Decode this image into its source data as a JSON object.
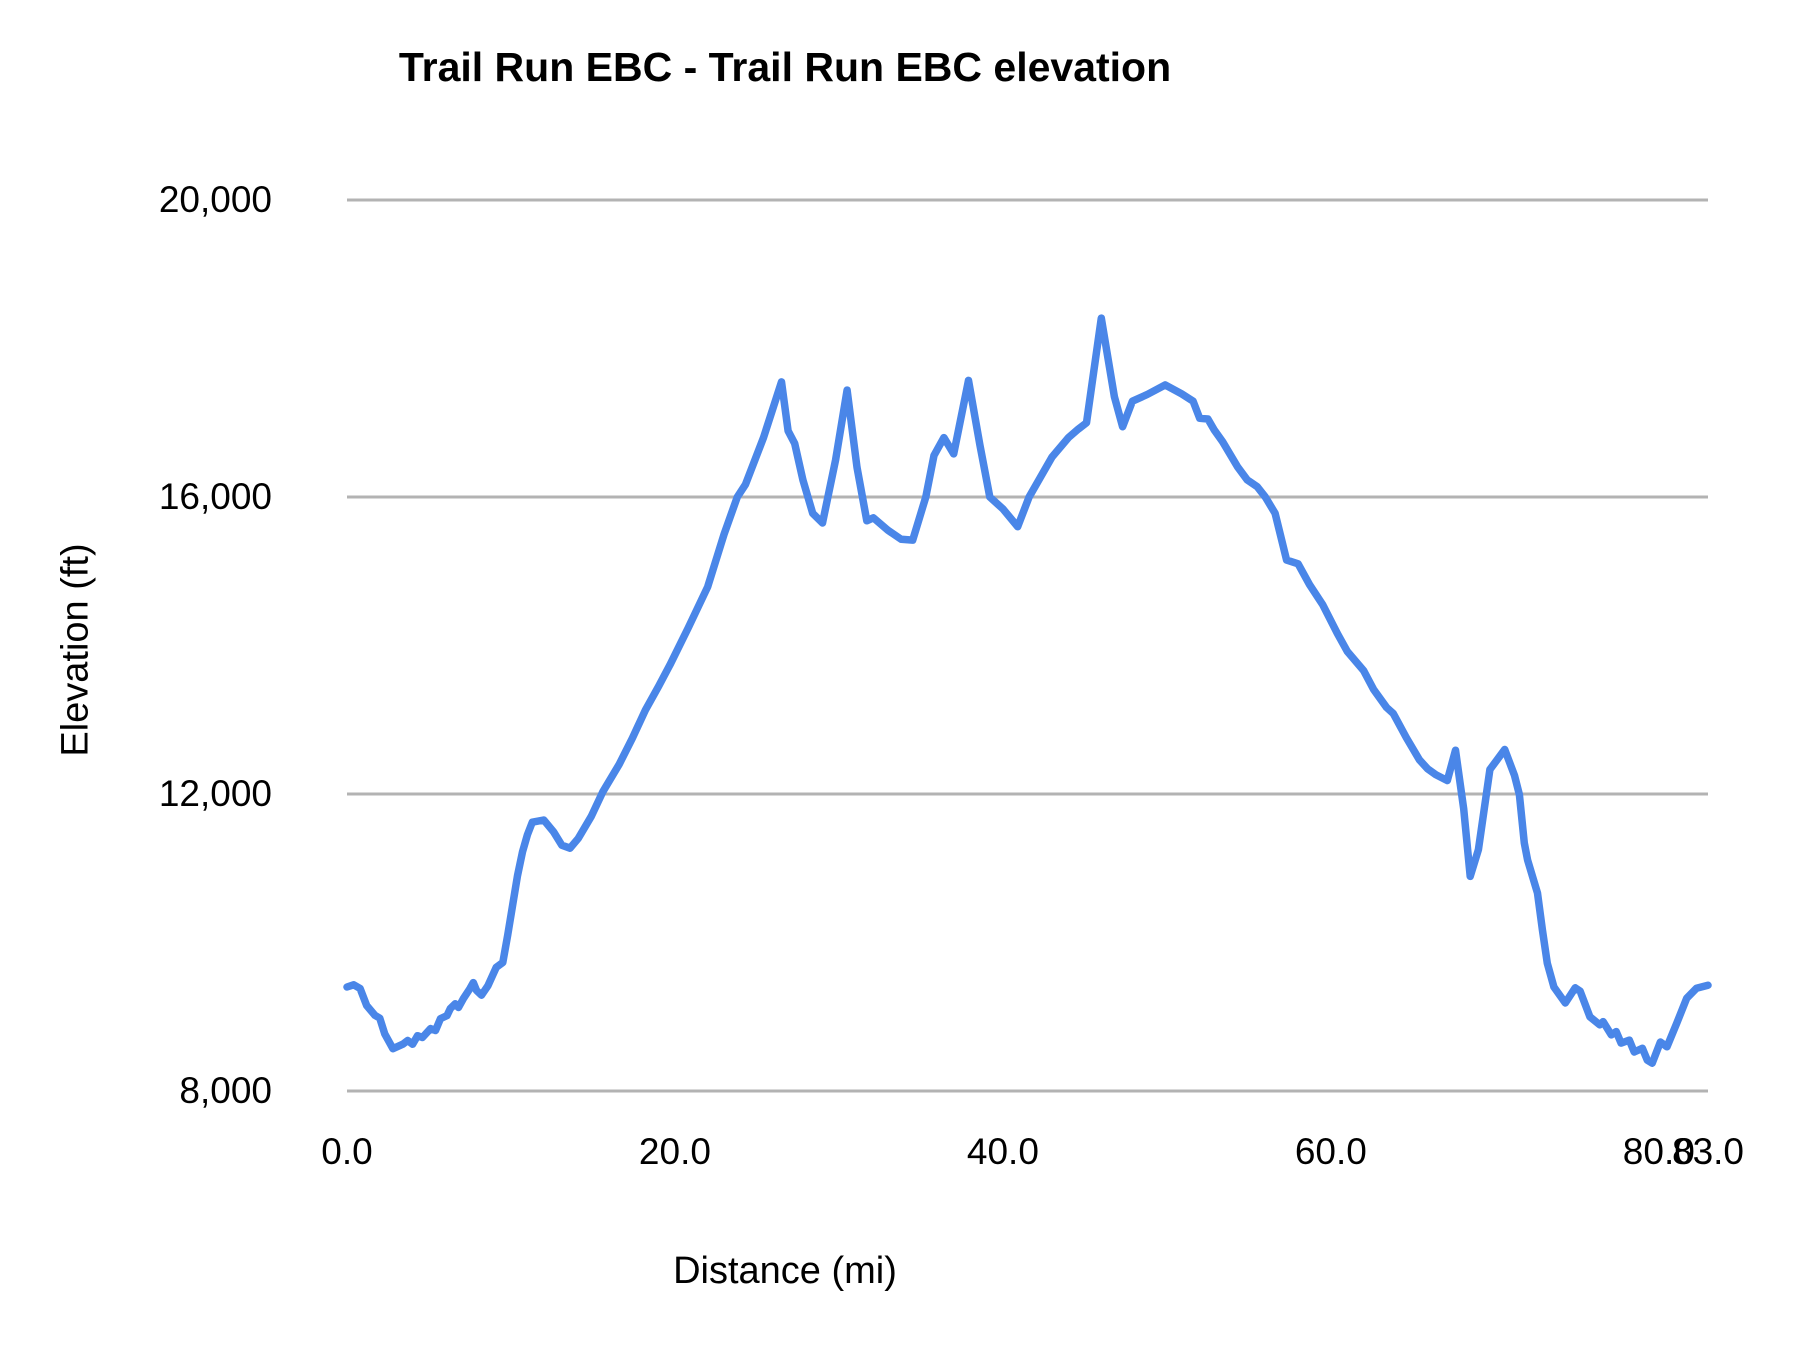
{
  "chart_data": {
    "type": "line",
    "title": "Trail Run EBC - Trail Run EBC elevation",
    "xlabel": "Distance (mi)",
    "ylabel": "Elevation (ft)",
    "xlim": [
      0,
      83
    ],
    "ylim": [
      8000,
      20000
    ],
    "grid": "horizontal-only",
    "legend": "none",
    "background_color": "#ffffff",
    "text_color": "#000000",
    "gridline_color": "#b3b3b3",
    "line_color": "#4a86e8",
    "yticks": [
      {
        "value": 20000,
        "label": "20,000"
      },
      {
        "value": 16000,
        "label": "16,000"
      },
      {
        "value": 12000,
        "label": "12,000"
      },
      {
        "value": 8000,
        "label": "8,000"
      }
    ],
    "xticks": [
      {
        "value": 0,
        "label": "0.0"
      },
      {
        "value": 20,
        "label": "20.0"
      },
      {
        "value": 40,
        "label": "40.0"
      },
      {
        "value": 60,
        "label": "60.0"
      },
      {
        "value": 80,
        "label": "80.0"
      },
      {
        "value": 83,
        "label": "83.0"
      }
    ],
    "series": [
      {
        "name": "Trail Run EBC elevation",
        "distance_mi": [
          0.0,
          0.4,
          0.8,
          1.2,
          1.7,
          2.0,
          2.3,
          2.8,
          3.4,
          3.7,
          4.0,
          4.3,
          4.6,
          5.1,
          5.4,
          5.7,
          6.1,
          6.3,
          6.6,
          6.8,
          7.1,
          7.5,
          7.7,
          7.9,
          8.2,
          8.6,
          9.1,
          9.5,
          9.8,
          10.1,
          10.4,
          10.7,
          11.0,
          11.3,
          12.0,
          12.6,
          13.1,
          13.6,
          14.1,
          14.9,
          15.6,
          16.6,
          17.4,
          18.2,
          19.0,
          19.7,
          20.8,
          22.0,
          23.0,
          23.8,
          24.3,
          25.4,
          26.5,
          26.9,
          27.3,
          27.8,
          28.4,
          29.0,
          29.8,
          30.5,
          31.1,
          31.7,
          32.1,
          33.0,
          33.8,
          34.5,
          35.3,
          35.8,
          36.4,
          37.0,
          37.9,
          38.6,
          39.2,
          40.0,
          40.9,
          41.6,
          43.0,
          44.0,
          44.6,
          45.1,
          46.0,
          46.8,
          47.3,
          47.9,
          48.8,
          49.9,
          50.9,
          51.6,
          52.0,
          52.5,
          52.9,
          53.4,
          54.3,
          54.9,
          55.5,
          56.0,
          56.6,
          57.3,
          58.0,
          58.7,
          59.5,
          60.4,
          61.0,
          62.0,
          62.6,
          63.4,
          63.8,
          64.6,
          65.4,
          65.9,
          66.4,
          67.1,
          67.6,
          68.1,
          68.5,
          69.0,
          69.7,
          70.1,
          70.6,
          71.2,
          71.5,
          71.8,
          72.0,
          72.6,
          72.9,
          73.2,
          73.6,
          74.3,
          74.9,
          75.2,
          75.8,
          76.4,
          76.6,
          77.1,
          77.4,
          77.7,
          78.2,
          78.5,
          79.0,
          79.3,
          79.6,
          80.1,
          80.5,
          81.1,
          81.7,
          82.3,
          83.0
        ],
        "elevation_ft": [
          9400,
          9430,
          9380,
          9150,
          9020,
          8980,
          8770,
          8570,
          8630,
          8680,
          8630,
          8745,
          8720,
          8840,
          8815,
          8975,
          9015,
          9110,
          9175,
          9125,
          9245,
          9380,
          9460,
          9355,
          9290,
          9420,
          9665,
          9730,
          10100,
          10500,
          10900,
          11220,
          11450,
          11620,
          11650,
          11490,
          11310,
          11270,
          11400,
          11700,
          12030,
          12400,
          12750,
          13130,
          13450,
          13740,
          14235,
          14790,
          15500,
          16000,
          16170,
          16800,
          17550,
          16890,
          16720,
          16230,
          15780,
          15650,
          16500,
          17440,
          16400,
          15680,
          15720,
          15550,
          15430,
          15420,
          16000,
          16560,
          16800,
          16580,
          17570,
          16700,
          16000,
          15840,
          15600,
          16000,
          16540,
          16800,
          16915,
          17000,
          18410,
          17350,
          16945,
          17290,
          17380,
          17510,
          17390,
          17290,
          17060,
          17050,
          16900,
          16745,
          16410,
          16230,
          16140,
          16000,
          15780,
          15150,
          15100,
          14820,
          14550,
          14160,
          13920,
          13660,
          13410,
          13165,
          13085,
          12760,
          12460,
          12340,
          12260,
          12180,
          12590,
          11800,
          10890,
          11250,
          12330,
          12450,
          12600,
          12250,
          11990,
          11340,
          11110,
          10665,
          10170,
          9720,
          9400,
          9185,
          9390,
          9345,
          9000,
          8890,
          8935,
          8755,
          8800,
          8645,
          8685,
          8525,
          8575,
          8415,
          8375,
          8660,
          8595,
          8915,
          9250,
          9385,
          9425
        ]
      }
    ]
  }
}
